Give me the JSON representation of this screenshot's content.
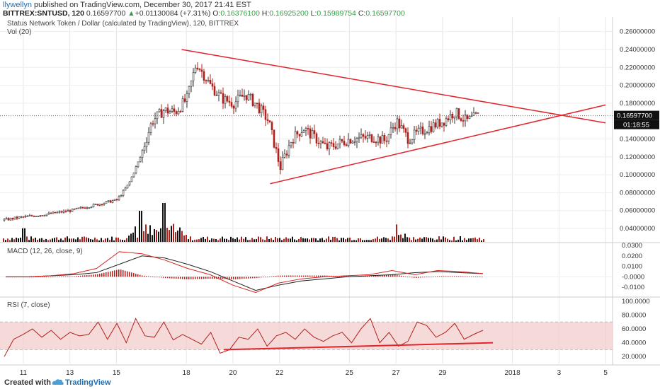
{
  "header": {
    "username": "llywellyn",
    "published_text": "published on TradingView.com, December 30, 2017 21:41 EST",
    "symbol": "BITTREX:SNTUSD, 120",
    "last_price": "0.16597700",
    "change": "+0.01130084 (+7.31%)",
    "open_label": "O:",
    "open": "0.16376100",
    "high_label": "H:",
    "high": "0.16925200",
    "low_label": "L:",
    "low": "0.15989754",
    "close_label": "C:",
    "close": "0.16597700"
  },
  "footer": {
    "created_with": "Created with",
    "brand": "TradingView"
  },
  "colors": {
    "up": "#333333",
    "down": "#b0211b",
    "trend": "#e3242b",
    "macd": "#222222",
    "signal": "#d9231d",
    "rsi": "#b0211b",
    "rsi_band": "#f2c9c9"
  },
  "chart_data": [
    {
      "type": "candlestick",
      "title": "Status Network Token / Dollar (calculated by TradingView), 120, BITTREX",
      "volume_label": "Vol (20)",
      "x_tick_labels": [
        "11",
        "13",
        "15",
        "18",
        "20",
        "22",
        "25",
        "27",
        "29",
        "2018",
        "3",
        "5"
      ],
      "y_tick_labels": [
        "0.26000000",
        "0.24000000",
        "0.22000000",
        "0.20000000",
        "0.18000000",
        "0.14000000",
        "0.12000000",
        "0.10000000",
        "0.08000000",
        "0.06000000",
        "0.04000000"
      ],
      "ylim": [
        0.025,
        0.27
      ],
      "last_price_label": "0.16597700",
      "countdown_label": "01:18:55",
      "price_path": [
        [
          "Dec 10",
          0.049
        ],
        [
          "Dec 11",
          0.053
        ],
        [
          "Dec 12",
          0.056
        ],
        [
          "Dec 13",
          0.06
        ],
        [
          "Dec 14",
          0.066
        ],
        [
          "Dec 15",
          0.072
        ],
        [
          "Dec 15.5",
          0.09
        ],
        [
          "Dec 16",
          0.12
        ],
        [
          "Dec 16.5",
          0.16
        ],
        [
          "Dec 17",
          0.172
        ],
        [
          "Dec 17.5",
          0.17
        ],
        [
          "Dec 18",
          0.185
        ],
        [
          "Dec 18.4",
          0.225
        ],
        [
          "Dec 19",
          0.2
        ],
        [
          "Dec 19.5",
          0.185
        ],
        [
          "Dec 20",
          0.18
        ],
        [
          "Dec 20.5",
          0.19
        ],
        [
          "Dec 21",
          0.178
        ],
        [
          "Dec 21.5",
          0.16
        ],
        [
          "Dec 22",
          0.108
        ],
        [
          "Dec 22.5",
          0.14
        ],
        [
          "Dec 23",
          0.152
        ],
        [
          "Dec 24",
          0.13
        ],
        [
          "Dec 25",
          0.14
        ],
        [
          "Dec 26",
          0.142
        ],
        [
          "Dec 26.5",
          0.138
        ],
        [
          "Dec 27",
          0.16
        ],
        [
          "Dec 27.5",
          0.14
        ],
        [
          "Dec 28",
          0.148
        ],
        [
          "Dec 29",
          0.16
        ],
        [
          "Dec 29.5",
          0.17
        ],
        [
          "Dec 30",
          0.16
        ],
        [
          "Dec 30.5",
          0.166
        ]
      ],
      "volume_spikes": [
        [
          "Dec 11",
          0.35
        ],
        [
          "Dec 16",
          0.8
        ],
        [
          "Dec 17",
          1.0
        ],
        [
          "Dec 27",
          0.45
        ]
      ],
      "trendlines": [
        {
          "name": "upper",
          "from": [
            "Dec 17.8",
            0.24
          ],
          "to": [
            "Jan 5",
            0.158
          ]
        },
        {
          "name": "lower",
          "from": [
            "Dec 21.6",
            0.09
          ],
          "to": [
            "Jan 5",
            0.178
          ]
        }
      ]
    },
    {
      "type": "line",
      "title": "MACD (12, 26, close, 9)",
      "y_tick_labels": [
        "0.0300",
        "0.0200",
        "0.0100",
        "-0.0000",
        "-0.0100"
      ],
      "ylim": [
        -0.018,
        0.032
      ],
      "series": [
        {
          "values": [
            0.0,
            0.0,
            0.001,
            0.002,
            0.004,
            0.012,
            0.02,
            0.018,
            0.012,
            0.005,
            -0.004,
            -0.013,
            -0.008,
            -0.004,
            -0.002,
            0.0,
            0.001,
            0.002,
            0.004,
            0.005,
            0.004,
            0.003
          ]
        },
        {
          "values": [
            0.0,
            0.0,
            0.001,
            0.003,
            0.008,
            0.024,
            0.022,
            0.016,
            0.008,
            0.002,
            -0.008,
            -0.015,
            -0.006,
            -0.002,
            0.0,
            0.001,
            0.002,
            0.006,
            0.002,
            0.006,
            0.005,
            0.003
          ]
        }
      ]
    },
    {
      "type": "line",
      "title": "RSI (7, close)",
      "y_tick_labels": [
        "100.0000",
        "80.0000",
        "60.0000",
        "40.0000",
        "20.0000"
      ],
      "ylim": [
        10,
        105
      ],
      "band": [
        30,
        70
      ],
      "series": [
        {
          "values": [
            20,
            45,
            52,
            60,
            48,
            58,
            45,
            55,
            50,
            52,
            70,
            45,
            68,
            40,
            75,
            50,
            48,
            70,
            44,
            52,
            45,
            38,
            55,
            25,
            30,
            48,
            45,
            60,
            35,
            50,
            55,
            45,
            60,
            48,
            42,
            50,
            55,
            40,
            60,
            75,
            40,
            55,
            35,
            42,
            70,
            65,
            48,
            55,
            68,
            45,
            52,
            58
          ]
        }
      ],
      "trendline": {
        "from": 30,
        "to": 40
      }
    }
  ]
}
